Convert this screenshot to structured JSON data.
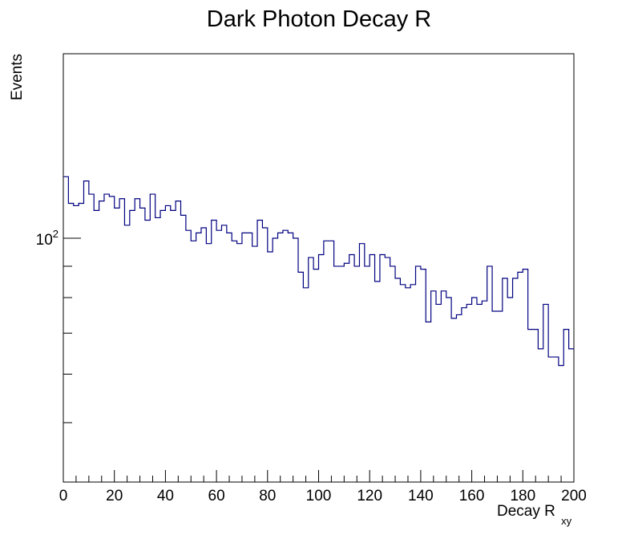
{
  "chart_data": {
    "type": "histogram",
    "title": "Dark Photon Decay R",
    "xlabel_main": "Decay R",
    "xlabel_sub": "xy",
    "ylabel": "Events",
    "xlim": [
      0,
      200
    ],
    "ylim": [
      40,
      200
    ],
    "yscale": "log",
    "bin_width": 2,
    "x_ticks": [
      0,
      20,
      40,
      60,
      80,
      100,
      120,
      140,
      160,
      180,
      200
    ],
    "x_tick_labels": [
      "0",
      "20",
      "40",
      "60",
      "80",
      "100",
      "120",
      "140",
      "160",
      "180",
      "200"
    ],
    "y_major_ticks": [
      100
    ],
    "y_major_labels": [
      {
        "base": "10",
        "exp": "2"
      }
    ],
    "y_minor_ticks": [
      50,
      60,
      70,
      80,
      90,
      200
    ],
    "line_color": "#000080",
    "values": [
      126,
      114,
      113,
      114,
      124,
      118,
      111,
      115,
      118,
      117,
      112,
      116,
      105,
      111,
      116,
      112,
      107,
      118,
      108,
      111,
      113,
      111,
      115,
      109,
      103,
      99,
      102,
      104,
      98,
      107,
      103,
      105,
      102,
      99,
      98,
      102,
      102,
      97,
      107,
      104,
      95,
      100,
      102,
      103,
      102,
      100,
      88,
      83,
      93,
      89,
      94,
      99,
      99,
      90,
      90,
      91,
      94,
      90,
      98,
      90,
      94,
      85,
      94,
      93,
      90,
      86,
      84,
      83,
      84,
      90,
      89,
      73,
      82,
      78,
      82,
      80,
      74,
      75,
      77,
      78,
      80,
      78,
      79,
      90,
      76,
      76,
      86,
      80,
      86,
      88,
      89,
      71,
      71,
      66,
      78,
      64,
      64,
      62,
      71,
      66
    ]
  }
}
